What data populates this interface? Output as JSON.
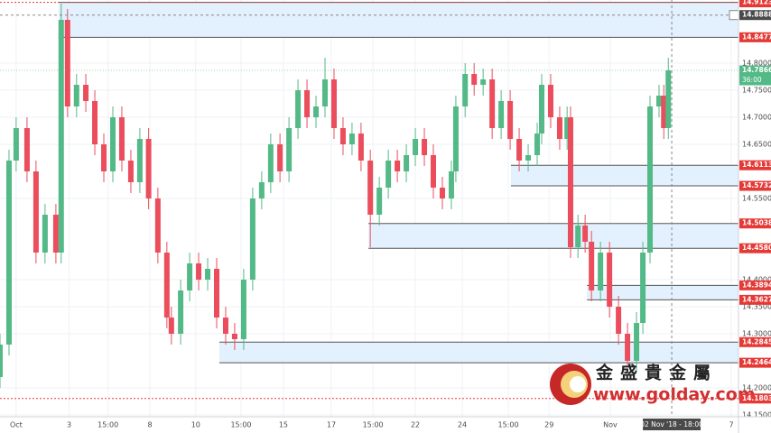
{
  "chart_data": {
    "type": "candlestick",
    "up_color": "#53b987",
    "down_color": "#eb4d5c",
    "xlim": [
      -0.61,
      27.27
    ],
    "ylim": [
      14.14667,
      14.91667
    ],
    "grid": true,
    "xticks": [
      {
        "value": 0,
        "label": "Oct"
      },
      {
        "value": 2,
        "label": "3"
      },
      {
        "value": 3.47,
        "label": "15:00"
      },
      {
        "value": 5.05,
        "label": "8"
      },
      {
        "value": 6.78,
        "label": "10"
      },
      {
        "value": 8.49,
        "label": "15:00"
      },
      {
        "value": 10.09,
        "label": "15"
      },
      {
        "value": 11.9,
        "label": "17"
      },
      {
        "value": 13.47,
        "label": "15:00"
      },
      {
        "value": 15.07,
        "label": "22"
      },
      {
        "value": 16.84,
        "label": "24"
      },
      {
        "value": 18.58,
        "label": "15:00"
      },
      {
        "value": 20.12,
        "label": "29"
      },
      {
        "value": 22.43,
        "label": "Nov"
      },
      {
        "value": 27,
        "label": "7"
      }
    ],
    "yticks": [
      {
        "value": 14.8,
        "label": "14.80000"
      },
      {
        "value": 14.75,
        "label": "14.75000"
      },
      {
        "value": 14.7,
        "label": "14.70000"
      },
      {
        "value": 14.65,
        "label": "14.65000"
      },
      {
        "value": 14.55,
        "label": "14.55000"
      },
      {
        "value": 14.4,
        "label": "14.40000"
      },
      {
        "value": 14.35,
        "label": "14.35000"
      },
      {
        "value": 14.3,
        "label": "14.30000"
      },
      {
        "value": 14.2,
        "label": "14.20000"
      },
      {
        "value": 14.15,
        "label": "14.15000"
      }
    ],
    "x": [
      -0.61,
      -0.27,
      0,
      0.41,
      0.75,
      1.09,
      1.5,
      1.7,
      1.94,
      2.28,
      2.63,
      2.97,
      3.31,
      3.65,
      3.99,
      4.33,
      4.67,
      5.0,
      5.35,
      5.69,
      5.86,
      6.21,
      6.55,
      6.89,
      7.23,
      7.57,
      7.91,
      8.25,
      8.59,
      8.93,
      9.27,
      9.61,
      9.96,
      10.3,
      10.64,
      10.98,
      11.32,
      11.66,
      12.0,
      12.34,
      12.68,
      13.02,
      13.37,
      13.71,
      14.05,
      14.39,
      14.73,
      15.07,
      15.41,
      15.75,
      16.09,
      16.43,
      16.6,
      16.95,
      17.29,
      17.63,
      17.97,
      18.31,
      18.65,
      18.99,
      19.33,
      19.67,
      19.84,
      20.18,
      20.52,
      20.8,
      20.93,
      21.21,
      21.48,
      21.72,
      22.06,
      22.4,
      22.74,
      23.08,
      23.42,
      23.66,
      23.93,
      24.27,
      24.45,
      24.62
    ],
    "open": [
      14.22,
      14.28,
      14.62,
      14.68,
      14.6,
      14.45,
      14.52,
      14.45,
      14.88,
      14.72,
      14.76,
      14.73,
      14.65,
      14.6,
      14.7,
      14.62,
      14.58,
      14.66,
      14.55,
      14.45,
      14.33,
      14.3,
      14.38,
      14.43,
      14.4,
      14.42,
      14.33,
      14.3,
      14.29,
      14.4,
      14.55,
      14.58,
      14.65,
      14.6,
      14.68,
      14.75,
      14.7,
      14.72,
      14.77,
      14.68,
      14.65,
      14.67,
      14.62,
      14.52,
      14.57,
      14.62,
      14.6,
      14.63,
      14.66,
      14.63,
      14.57,
      14.55,
      14.6,
      14.72,
      14.78,
      14.76,
      14.77,
      14.68,
      14.73,
      14.66,
      14.62,
      14.63,
      14.67,
      14.76,
      14.7,
      14.66,
      14.7,
      14.46,
      14.5,
      14.47,
      14.38,
      14.45,
      14.35,
      14.3,
      14.25,
      14.32,
      14.45,
      14.72,
      14.74,
      14.68
    ],
    "high": [
      14.3,
      14.64,
      14.7,
      14.7,
      14.62,
      14.54,
      14.54,
      14.91,
      14.9,
      14.78,
      14.78,
      14.75,
      14.67,
      14.72,
      14.72,
      14.64,
      14.68,
      14.68,
      14.57,
      14.47,
      14.35,
      14.4,
      14.45,
      14.45,
      14.44,
      14.44,
      14.35,
      14.32,
      14.42,
      14.57,
      14.6,
      14.67,
      14.67,
      14.7,
      14.77,
      14.77,
      14.74,
      14.81,
      14.79,
      14.7,
      14.69,
      14.69,
      14.64,
      14.59,
      14.64,
      14.64,
      14.65,
      14.68,
      14.68,
      14.65,
      14.59,
      14.62,
      14.74,
      14.8,
      14.8,
      14.79,
      14.79,
      14.75,
      14.75,
      14.68,
      14.65,
      14.69,
      14.78,
      14.78,
      14.72,
      14.72,
      14.72,
      14.52,
      14.52,
      14.49,
      14.47,
      14.47,
      14.37,
      14.32,
      14.34,
      14.47,
      14.74,
      14.76,
      14.76,
      14.81
    ],
    "low": [
      14.2,
      14.26,
      14.6,
      14.58,
      14.43,
      14.43,
      14.43,
      14.43,
      14.7,
      14.7,
      14.71,
      14.63,
      14.58,
      14.58,
      14.6,
      14.56,
      14.56,
      14.53,
      14.43,
      14.31,
      14.28,
      14.28,
      14.36,
      14.38,
      14.38,
      14.31,
      14.28,
      14.27,
      14.27,
      14.38,
      14.53,
      14.56,
      14.58,
      14.58,
      14.66,
      14.68,
      14.68,
      14.7,
      14.66,
      14.63,
      14.63,
      14.6,
      14.46,
      14.5,
      14.55,
      14.58,
      14.58,
      14.61,
      14.61,
      14.55,
      14.53,
      14.53,
      14.58,
      14.7,
      14.74,
      14.74,
      14.66,
      14.66,
      14.64,
      14.6,
      14.6,
      14.61,
      14.65,
      14.68,
      14.64,
      14.64,
      14.44,
      14.44,
      14.45,
      14.36,
      14.36,
      14.33,
      14.28,
      14.24,
      14.23,
      14.3,
      14.43,
      14.7,
      14.66,
      14.66
    ],
    "close": [
      14.28,
      14.62,
      14.68,
      14.6,
      14.45,
      14.52,
      14.45,
      14.88,
      14.72,
      14.76,
      14.73,
      14.65,
      14.6,
      14.7,
      14.62,
      14.58,
      14.66,
      14.55,
      14.45,
      14.33,
      14.3,
      14.38,
      14.43,
      14.4,
      14.42,
      14.33,
      14.3,
      14.29,
      14.4,
      14.55,
      14.58,
      14.65,
      14.6,
      14.68,
      14.75,
      14.7,
      14.72,
      14.77,
      14.68,
      14.65,
      14.67,
      14.62,
      14.52,
      14.57,
      14.62,
      14.6,
      14.63,
      14.66,
      14.63,
      14.57,
      14.55,
      14.6,
      14.72,
      14.78,
      14.76,
      14.77,
      14.68,
      14.73,
      14.66,
      14.62,
      14.63,
      14.67,
      14.76,
      14.7,
      14.66,
      14.7,
      14.46,
      14.5,
      14.47,
      14.38,
      14.45,
      14.35,
      14.3,
      14.25,
      14.32,
      14.45,
      14.72,
      14.74,
      14.68,
      14.7866
    ],
    "zones": [
      {
        "upper": 14.91238,
        "lower": 14.84778,
        "from": 1.6
      },
      {
        "upper": 14.61133,
        "lower": 14.57327,
        "from": 18.68
      },
      {
        "upper": 14.50383,
        "lower": 14.45802,
        "from": 13.3
      },
      {
        "upper": 14.38945,
        "lower": 14.36273,
        "from": 21.55
      },
      {
        "upper": 14.28455,
        "lower": 14.24648,
        "from": 7.67
      }
    ],
    "lines": [
      14.18036
    ],
    "crosshair": {
      "x": {
        "value": 24.75,
        "label": "02 Nov '18 - 18:00"
      },
      "y": 14.88882
    },
    "last_price": {
      "value": 14.7866,
      "label": "14.78660"
    },
    "countdown": "36:00",
    "watermark": {
      "name": "金盛貴金屬",
      "url": "www.golday.com"
    }
  }
}
